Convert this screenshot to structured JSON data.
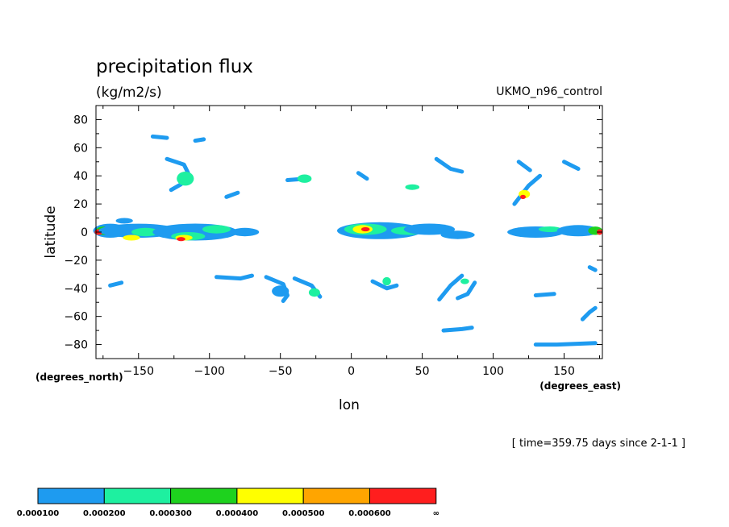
{
  "chart_data": {
    "type": "heatmap",
    "title": "precipitation flux",
    "units": "(kg/m2/s)",
    "model": "UKMO_n96_control",
    "xlabel": "lon",
    "ylabel": "latitude",
    "x_units": "(degrees_east)",
    "y_units": "(degrees_north)",
    "xlim": [
      -180,
      177
    ],
    "ylim": [
      -90,
      90
    ],
    "x_ticks": [
      -150,
      -100,
      -50,
      0,
      50,
      100,
      150
    ],
    "x_tick_labels": [
      "−150",
      "−100",
      "−50",
      "0",
      "50",
      "100",
      "150"
    ],
    "y_ticks": [
      80,
      60,
      40,
      20,
      0,
      -20,
      -40,
      -60,
      -80
    ],
    "y_tick_labels": [
      "80",
      "60",
      "40",
      "20",
      "0",
      "−20",
      "−40",
      "−60",
      "−80"
    ],
    "time_label": "[ time=359.75 days since 2-1-1 ]",
    "colorbar": {
      "levels": [
        "0.000100",
        "0.000200",
        "0.000300",
        "0.000400",
        "0.000500",
        "0.000600",
        "∞"
      ],
      "colors": [
        "#1e9bf0",
        "#1ef0a0",
        "#1ed21e",
        "#ffff00",
        "#ffa500",
        "#ff1e1e"
      ]
    },
    "patches": [
      {
        "lon": -170,
        "lat": 1,
        "rx": 12,
        "ry": 5,
        "level": 0
      },
      {
        "lon": -175,
        "lat": 1,
        "rx": 5,
        "ry": 3,
        "level": 2
      },
      {
        "lon": -178,
        "lat": 0,
        "rx": 3,
        "ry": 2,
        "level": 5
      },
      {
        "lon": -160,
        "lat": 8,
        "rx": 6,
        "ry": 2,
        "level": 0
      },
      {
        "lon": -150,
        "lat": 1,
        "rx": 28,
        "ry": 5,
        "level": 0
      },
      {
        "lon": -145,
        "lat": 0,
        "rx": 10,
        "ry": 3,
        "level": 1
      },
      {
        "lon": -155,
        "lat": -4,
        "rx": 6,
        "ry": 2,
        "level": 3
      },
      {
        "lon": -110,
        "lat": 0,
        "rx": 30,
        "ry": 6,
        "level": 0
      },
      {
        "lon": -115,
        "lat": -3,
        "rx": 12,
        "ry": 3,
        "level": 1
      },
      {
        "lon": -118,
        "lat": -4,
        "rx": 6,
        "ry": 2,
        "level": 3
      },
      {
        "lon": -120,
        "lat": -5,
        "rx": 3,
        "ry": 1.5,
        "level": 5
      },
      {
        "lon": -95,
        "lat": 2,
        "rx": 10,
        "ry": 3,
        "level": 1
      },
      {
        "lon": -75,
        "lat": 0,
        "rx": 10,
        "ry": 3,
        "level": 0
      },
      {
        "lon": 20,
        "lat": 1,
        "rx": 30,
        "ry": 6,
        "level": 0
      },
      {
        "lon": 10,
        "lat": 2,
        "rx": 15,
        "ry": 4,
        "level": 1
      },
      {
        "lon": 8,
        "lat": 2,
        "rx": 7,
        "ry": 3,
        "level": 3
      },
      {
        "lon": 10,
        "lat": 2,
        "rx": 3,
        "ry": 1.5,
        "level": 5
      },
      {
        "lon": 40,
        "lat": 1,
        "rx": 12,
        "ry": 3,
        "level": 1
      },
      {
        "lon": 55,
        "lat": 2,
        "rx": 18,
        "ry": 4,
        "level": 0
      },
      {
        "lon": 75,
        "lat": -2,
        "rx": 12,
        "ry": 3,
        "level": 0
      },
      {
        "lon": 130,
        "lat": 0,
        "rx": 20,
        "ry": 4,
        "level": 0
      },
      {
        "lon": 140,
        "lat": 2,
        "rx": 8,
        "ry": 2,
        "level": 1
      },
      {
        "lon": 160,
        "lat": 1,
        "rx": 15,
        "ry": 4,
        "level": 0
      },
      {
        "lon": 172,
        "lat": 1,
        "rx": 5,
        "ry": 3,
        "level": 2
      },
      {
        "lon": 175,
        "lat": 0,
        "rx": 2,
        "ry": 2,
        "level": 5
      },
      {
        "lon": -117,
        "lat": 38,
        "rx": 6,
        "ry": 5,
        "level": 1
      },
      {
        "lon": -33,
        "lat": 38,
        "rx": 5,
        "ry": 3,
        "level": 1
      },
      {
        "lon": 43,
        "lat": 32,
        "rx": 5,
        "ry": 2,
        "level": 1
      },
      {
        "lon": 122,
        "lat": 27,
        "rx": 4,
        "ry": 3,
        "level": 3
      },
      {
        "lon": 121,
        "lat": 25,
        "rx": 2,
        "ry": 1.5,
        "level": 5
      },
      {
        "lon": -50,
        "lat": -42,
        "rx": 6,
        "ry": 4,
        "level": 0
      },
      {
        "lon": -26,
        "lat": -43,
        "rx": 4,
        "ry": 3,
        "level": 1
      },
      {
        "lon": 25,
        "lat": -35,
        "rx": 3,
        "ry": 3,
        "level": 1
      },
      {
        "lon": 80,
        "lat": -35,
        "rx": 3,
        "ry": 2,
        "level": 1
      }
    ],
    "bands": [
      {
        "points": [
          [
            -130,
            52
          ],
          [
            -118,
            48
          ],
          [
            -115,
            42
          ],
          [
            -120,
            34
          ],
          [
            -127,
            30
          ]
        ],
        "level": 0
      },
      {
        "points": [
          [
            -60,
            -32
          ],
          [
            -48,
            -37
          ],
          [
            -45,
            -45
          ],
          [
            -48,
            -49
          ]
        ],
        "level": 0
      },
      {
        "points": [
          [
            -40,
            -33
          ],
          [
            -28,
            -38
          ],
          [
            -22,
            -46
          ]
        ],
        "level": 0
      },
      {
        "points": [
          [
            -95,
            -32
          ],
          [
            -78,
            -33
          ],
          [
            -70,
            -31
          ]
        ],
        "level": 0
      },
      {
        "points": [
          [
            -45,
            37
          ],
          [
            -32,
            38
          ]
        ],
        "level": 0
      },
      {
        "points": [
          [
            60,
            52
          ],
          [
            70,
            45
          ],
          [
            78,
            43
          ]
        ],
        "level": 0
      },
      {
        "points": [
          [
            115,
            20
          ],
          [
            125,
            33
          ],
          [
            133,
            40
          ]
        ],
        "level": 0
      },
      {
        "points": [
          [
            0,
            0
          ],
          [
            5,
            3
          ],
          [
            12,
            3
          ],
          [
            20,
            2
          ]
        ],
        "level": 0
      },
      {
        "points": [
          [
            62,
            -48
          ],
          [
            70,
            -38
          ],
          [
            78,
            -31
          ]
        ],
        "level": 0
      },
      {
        "points": [
          [
            87,
            -36
          ],
          [
            82,
            -44
          ],
          [
            75,
            -47
          ]
        ],
        "level": 0
      },
      {
        "points": [
          [
            130,
            -80
          ],
          [
            145,
            -80
          ],
          [
            172,
            -79
          ]
        ],
        "level": 0
      },
      {
        "points": [
          [
            65,
            -70
          ],
          [
            78,
            -69
          ],
          [
            85,
            -68
          ]
        ],
        "level": 0
      },
      {
        "points": [
          [
            163,
            -62
          ],
          [
            168,
            -57
          ],
          [
            172,
            -54
          ]
        ],
        "level": 0
      },
      {
        "points": [
          [
            118,
            50
          ],
          [
            126,
            44
          ]
        ],
        "level": 0
      },
      {
        "points": [
          [
            150,
            50
          ],
          [
            160,
            45
          ]
        ],
        "level": 0
      },
      {
        "points": [
          [
            -88,
            25
          ],
          [
            -80,
            28
          ]
        ],
        "level": 0
      },
      {
        "points": [
          [
            15,
            -35
          ],
          [
            25,
            -40
          ],
          [
            32,
            -38
          ]
        ],
        "level": 0
      },
      {
        "points": [
          [
            -140,
            68
          ],
          [
            -130,
            67
          ]
        ],
        "level": 0
      },
      {
        "points": [
          [
            -110,
            65
          ],
          [
            -104,
            66
          ]
        ],
        "level": 0
      },
      {
        "points": [
          [
            130,
            -45
          ],
          [
            143,
            -44
          ]
        ],
        "level": 0
      },
      {
        "points": [
          [
            5,
            42
          ],
          [
            11,
            38
          ]
        ],
        "level": 0
      },
      {
        "points": [
          [
            168,
            -25
          ],
          [
            172,
            -27
          ]
        ],
        "level": 0
      },
      {
        "points": [
          [
            -170,
            -38
          ],
          [
            -162,
            -36
          ]
        ],
        "level": 0
      }
    ]
  }
}
